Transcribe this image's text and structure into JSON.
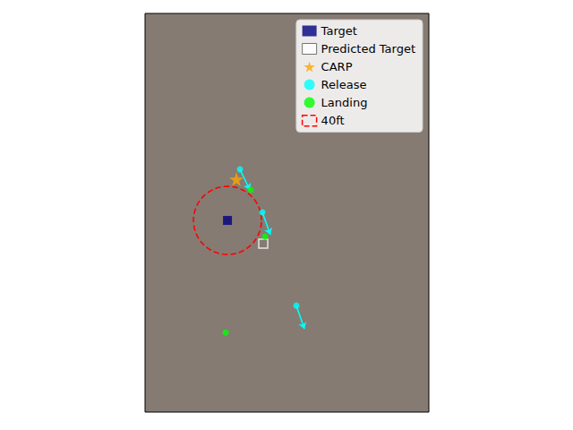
{
  "chart_data": {
    "type": "scatter",
    "xlim": [
      -97,
      237
    ],
    "ylim": [
      -225,
      243
    ],
    "tick_labels": false,
    "grid": false,
    "legend": "upper right",
    "series": [
      {
        "name": "Target",
        "color": "#000080",
        "marker": "square",
        "x": [
          0
        ],
        "values": [
          0
        ]
      },
      {
        "name": "Predicted Target",
        "color": "#ffffff",
        "marker": "hollow square",
        "x": [
          42.1
        ],
        "values": [
          -27.4
        ]
      },
      {
        "name": "CARP",
        "color": "#ffa500",
        "marker": "star",
        "x": [
          10.5
        ],
        "values": [
          48.4
        ]
      },
      {
        "name": "Release",
        "color": "#00ffff",
        "marker": "circle",
        "x": [
          14.7,
          41.1,
          81.1
        ],
        "values": [
          60.0,
          9.5,
          -100.0
        ],
        "arrow_to_x": [
          26.3,
          50.5,
          90.6
        ],
        "arrow_to_y": [
          35.8,
          -16.8,
          -127.4
        ]
      },
      {
        "name": "Landing",
        "color": "#00ff00",
        "marker": "circle",
        "x": [
          27.4,
          44.2,
          -2.1
        ],
        "values": [
          35.8,
          -19.0,
          -131.6
        ]
      },
      {
        "name": "40ft",
        "type": "circle",
        "color": "#ff0000",
        "line_style": "dashed",
        "x": [
          0
        ],
        "values": [
          0
        ],
        "radius": [
          40
        ]
      }
    ]
  }
}
